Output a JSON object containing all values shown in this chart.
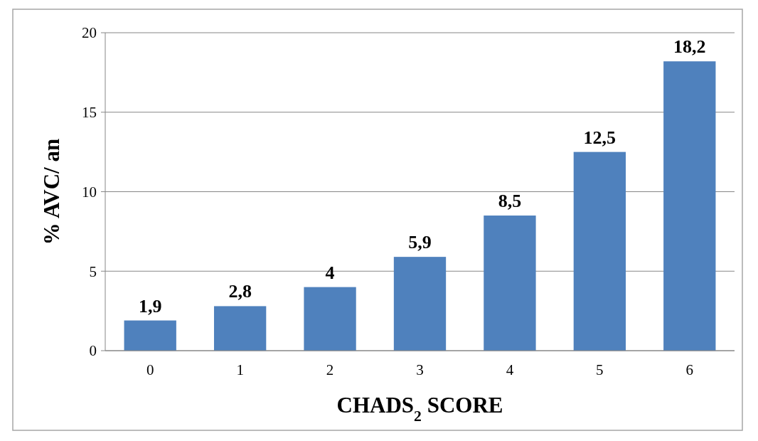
{
  "chart_data": {
    "type": "bar",
    "xlabel": "CHADS$_{2}$ SCORE",
    "ylabel": "% AVC/ an",
    "categories": [
      "0",
      "1",
      "2",
      "3",
      "4",
      "5",
      "6"
    ],
    "series": [
      {
        "color": "#4f81bd",
        "values": [
          1.9,
          2.8,
          4,
          5.9,
          8.5,
          12.5,
          18.2
        ],
        "value_labels": [
          "1,9",
          "2,8",
          "4",
          "5,9",
          "8,5",
          "12,5",
          "18,2"
        ]
      }
    ],
    "ylim": [
      0,
      20
    ],
    "yticks": [
      0,
      5,
      10,
      15,
      20
    ],
    "grid": "y"
  }
}
